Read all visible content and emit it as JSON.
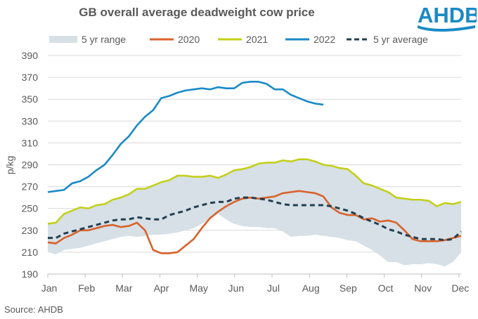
{
  "chart_data": {
    "type": "line",
    "title": "GB overall average deadweight cow price",
    "ylabel": "p/kg",
    "xlabel": "",
    "ylim": [
      190,
      390
    ],
    "yticks": [
      190,
      210,
      230,
      250,
      270,
      290,
      310,
      330,
      350,
      370,
      390
    ],
    "xticks": [
      "Jan",
      "Feb",
      "Mar",
      "Apr",
      "May",
      "Jun",
      "Jul",
      "Aug",
      "Sep",
      "Oct",
      "Nov",
      "Dec"
    ],
    "x_unit": "week of year (1-52)",
    "grid": "horizontal",
    "legend_position": "top",
    "legend": [
      "5 yr range",
      "2020",
      "2021",
      "2022",
      "5 yr average"
    ],
    "range": {
      "name": "5 yr range",
      "color": "#d6e0e6",
      "upper": [
        236,
        237,
        245,
        248,
        251,
        250,
        253,
        254,
        258,
        260,
        263,
        268,
        268,
        271,
        274,
        276,
        280,
        280,
        279,
        279,
        280,
        278,
        281,
        285,
        286,
        288,
        291,
        292,
        292,
        294,
        293,
        295,
        295,
        293,
        290,
        289,
        287,
        286,
        280,
        273,
        271,
        268,
        265,
        260,
        259,
        258,
        258,
        257,
        252,
        255,
        254,
        256
      ],
      "lower": [
        210,
        208,
        212,
        213,
        214,
        216,
        218,
        220,
        222,
        224,
        225,
        224,
        225,
        226,
        226,
        227,
        228,
        230,
        232,
        236,
        241,
        245,
        240,
        236,
        234,
        233,
        233,
        232,
        232,
        229,
        224,
        225,
        225,
        226,
        225,
        224,
        223,
        221,
        220,
        216,
        212,
        207,
        201,
        201,
        198,
        199,
        199,
        200,
        199,
        197,
        201,
        210
      ]
    },
    "series": [
      {
        "name": "2020",
        "color": "#d9622b",
        "dashed": false,
        "values": [
          219,
          218,
          223,
          226,
          230,
          230,
          232,
          234,
          235,
          233,
          234,
          237,
          230,
          212,
          209,
          209,
          210,
          216,
          222,
          232,
          241,
          247,
          252,
          256,
          259,
          260,
          259,
          260,
          261,
          264,
          265,
          266,
          265,
          264,
          261,
          251,
          246,
          244,
          244,
          240,
          241,
          238,
          239,
          237,
          230,
          222,
          220,
          220,
          220,
          221,
          223,
          225
        ]
      },
      {
        "name": "2021",
        "color": "#c3cf1b",
        "dashed": false,
        "values": [
          236,
          237,
          245,
          248,
          251,
          250,
          253,
          254,
          258,
          260,
          263,
          268,
          268,
          271,
          274,
          276,
          280,
          280,
          279,
          279,
          280,
          278,
          281,
          285,
          286,
          288,
          291,
          292,
          292,
          294,
          293,
          295,
          295,
          293,
          290,
          289,
          287,
          286,
          280,
          273,
          271,
          268,
          265,
          260,
          259,
          258,
          258,
          257,
          252,
          255,
          254,
          256
        ]
      },
      {
        "name": "2022",
        "color": "#1a8ac6",
        "dashed": false,
        "values": [
          265,
          266,
          267,
          273,
          275,
          279,
          285,
          290,
          299,
          309,
          316,
          326,
          334,
          340,
          351,
          353,
          356,
          358,
          359,
          360,
          359,
          361,
          360,
          360,
          365,
          366,
          366,
          364,
          359,
          359,
          354,
          351,
          348,
          346,
          345
        ]
      },
      {
        "name": "5 yr average",
        "color": "#243f4f",
        "dashed": true,
        "values": [
          223,
          223,
          227,
          229,
          231,
          233,
          235,
          237,
          239,
          240,
          240,
          242,
          241,
          240,
          240,
          244,
          246,
          248,
          251,
          253,
          255,
          256,
          256,
          259,
          260,
          260,
          259,
          258,
          256,
          254,
          253,
          253,
          253,
          253,
          253,
          252,
          250,
          248,
          245,
          241,
          238,
          235,
          231,
          229,
          226,
          224,
          222,
          222,
          222,
          221,
          222,
          229
        ]
      }
    ]
  },
  "logo": {
    "text": "AHDB",
    "color": "#1a8ac6"
  },
  "source": "Source: AHDB"
}
